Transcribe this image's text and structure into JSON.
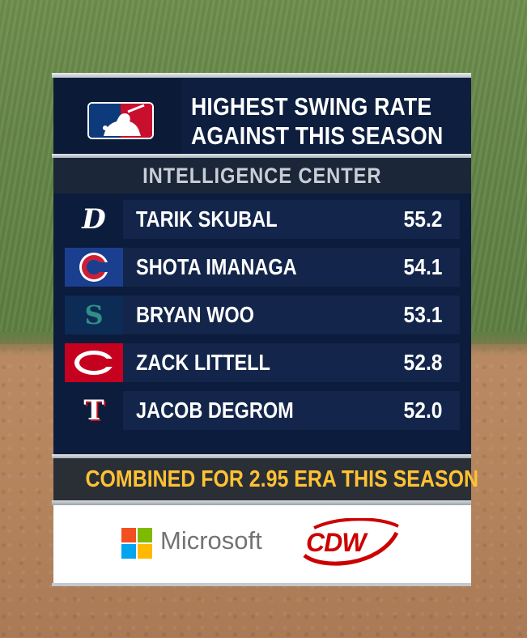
{
  "header": {
    "title_line1": "HIGHEST SWING RATE",
    "title_line2": "AGAINST THIS SEASON",
    "logo_icon": "mlb-logo"
  },
  "subheading": "INTELLIGENCE CENTER",
  "players": [
    {
      "name": "TARIK SKUBAL",
      "value": "55.2",
      "team_icon": "tigers-d-icon"
    },
    {
      "name": "SHOTA IMANAGA",
      "value": "54.1",
      "team_icon": "cubs-c-icon"
    },
    {
      "name": "BRYAN WOO",
      "value": "53.1",
      "team_icon": "mariners-s-icon"
    },
    {
      "name": "ZACK LITTELL",
      "value": "52.8",
      "team_icon": "reds-c-icon"
    },
    {
      "name": "JACOB DEGROM",
      "value": "52.0",
      "team_icon": "rangers-t-icon"
    }
  ],
  "banner": "COMBINED FOR 2.95 ERA THIS SEASON",
  "sponsors": {
    "microsoft": "Microsoft",
    "cdw": "CDW"
  },
  "colors": {
    "panel_navy": "#0c1c3c",
    "row_navy": "#13254a",
    "banner_text": "#ffc234",
    "banner_bg": "#2a2f36"
  }
}
